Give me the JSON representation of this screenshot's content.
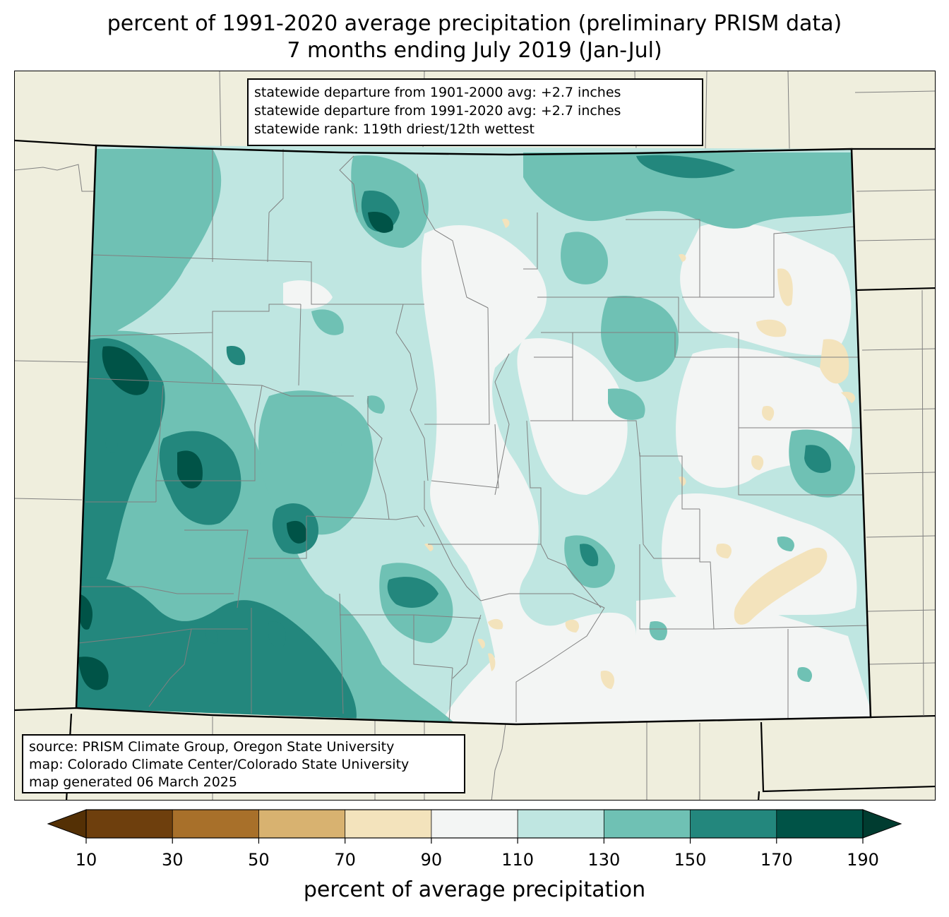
{
  "title": {
    "line1": "percent of 1991-2020 average precipitation (preliminary PRISM data)",
    "line2": "7 months ending July 2019 (Jan-Jul)"
  },
  "stats": {
    "line1": "statewide departure from 1901-2000 avg: +2.7 inches",
    "line2": "statewide departure from 1991-2020 avg: +2.7 inches",
    "line3": "statewide rank: 119th driest/12th wettest"
  },
  "source": {
    "line1": "source: PRISM Climate Group, Oregon State University",
    "line2": "map: Colorado Climate Center/Colorado State University",
    "line3": "map generated 06 March 2025"
  },
  "colorbar": {
    "label": "percent of average precipitation",
    "ticks": [
      "10",
      "30",
      "50",
      "70",
      "90",
      "110",
      "130",
      "150",
      "170",
      "190"
    ],
    "colors": [
      "#6e3f0d",
      "#a8702a",
      "#d8b270",
      "#f3e3bc",
      "#f3f5f4",
      "#bfe6e1",
      "#6fc1b4",
      "#23877d",
      "#005347"
    ],
    "under_color": "#543005",
    "over_color": "#003c30"
  },
  "map_colors": {
    "background": "#efeedd",
    "border": "#000000",
    "county_lines": "#808080"
  }
}
